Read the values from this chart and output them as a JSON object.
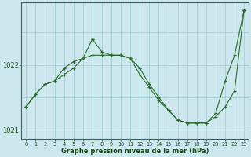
{
  "title": "Graphe pression niveau de la mer (hPa)",
  "bg_color": "#cce8ee",
  "grid_color": "#99cccc",
  "line_color": "#2d6a2d",
  "hours": [
    0,
    1,
    2,
    3,
    4,
    5,
    6,
    7,
    8,
    9,
    10,
    11,
    12,
    13,
    14,
    15,
    16,
    17,
    18,
    19,
    20,
    21,
    22,
    23
  ],
  "series1": [
    1021.35,
    1021.55,
    1021.7,
    1021.75,
    1021.85,
    1021.95,
    1022.1,
    1022.15,
    1022.15,
    1022.15,
    1022.15,
    1022.1,
    1021.95,
    1021.7,
    1021.5,
    1021.3,
    1021.15,
    1021.1,
    1021.1,
    1021.1,
    1021.2,
    1021.35,
    1021.6,
    1022.85
  ],
  "series2": [
    1021.35,
    1021.55,
    1021.7,
    1021.75,
    1021.95,
    1022.05,
    1022.1,
    1022.4,
    1022.2,
    1022.15,
    1022.15,
    1022.1,
    1021.85,
    1021.65,
    1021.45,
    1021.3,
    1021.15,
    1021.1,
    1021.1,
    1021.1,
    1021.25,
    1021.75,
    1022.15,
    1022.85
  ],
  "series3": [
    1021.35,
    null,
    null,
    null,
    null,
    null,
    null,
    1022.4,
    null,
    null,
    null,
    null,
    null,
    null,
    null,
    null,
    null,
    null,
    null,
    null,
    null,
    null,
    null,
    1022.85
  ],
  "ylim": [
    1020.85,
    1022.97
  ],
  "yticks": [
    1021,
    1022
  ],
  "xlim": [
    -0.5,
    23.5
  ],
  "xtick_labels": [
    "0",
    "1",
    "2",
    "3",
    "4",
    "5",
    "6",
    "7",
    "8",
    "9",
    "10",
    "11",
    "12",
    "13",
    "14",
    "15",
    "16",
    "17",
    "18",
    "19",
    "20",
    "21",
    "22",
    "23"
  ]
}
